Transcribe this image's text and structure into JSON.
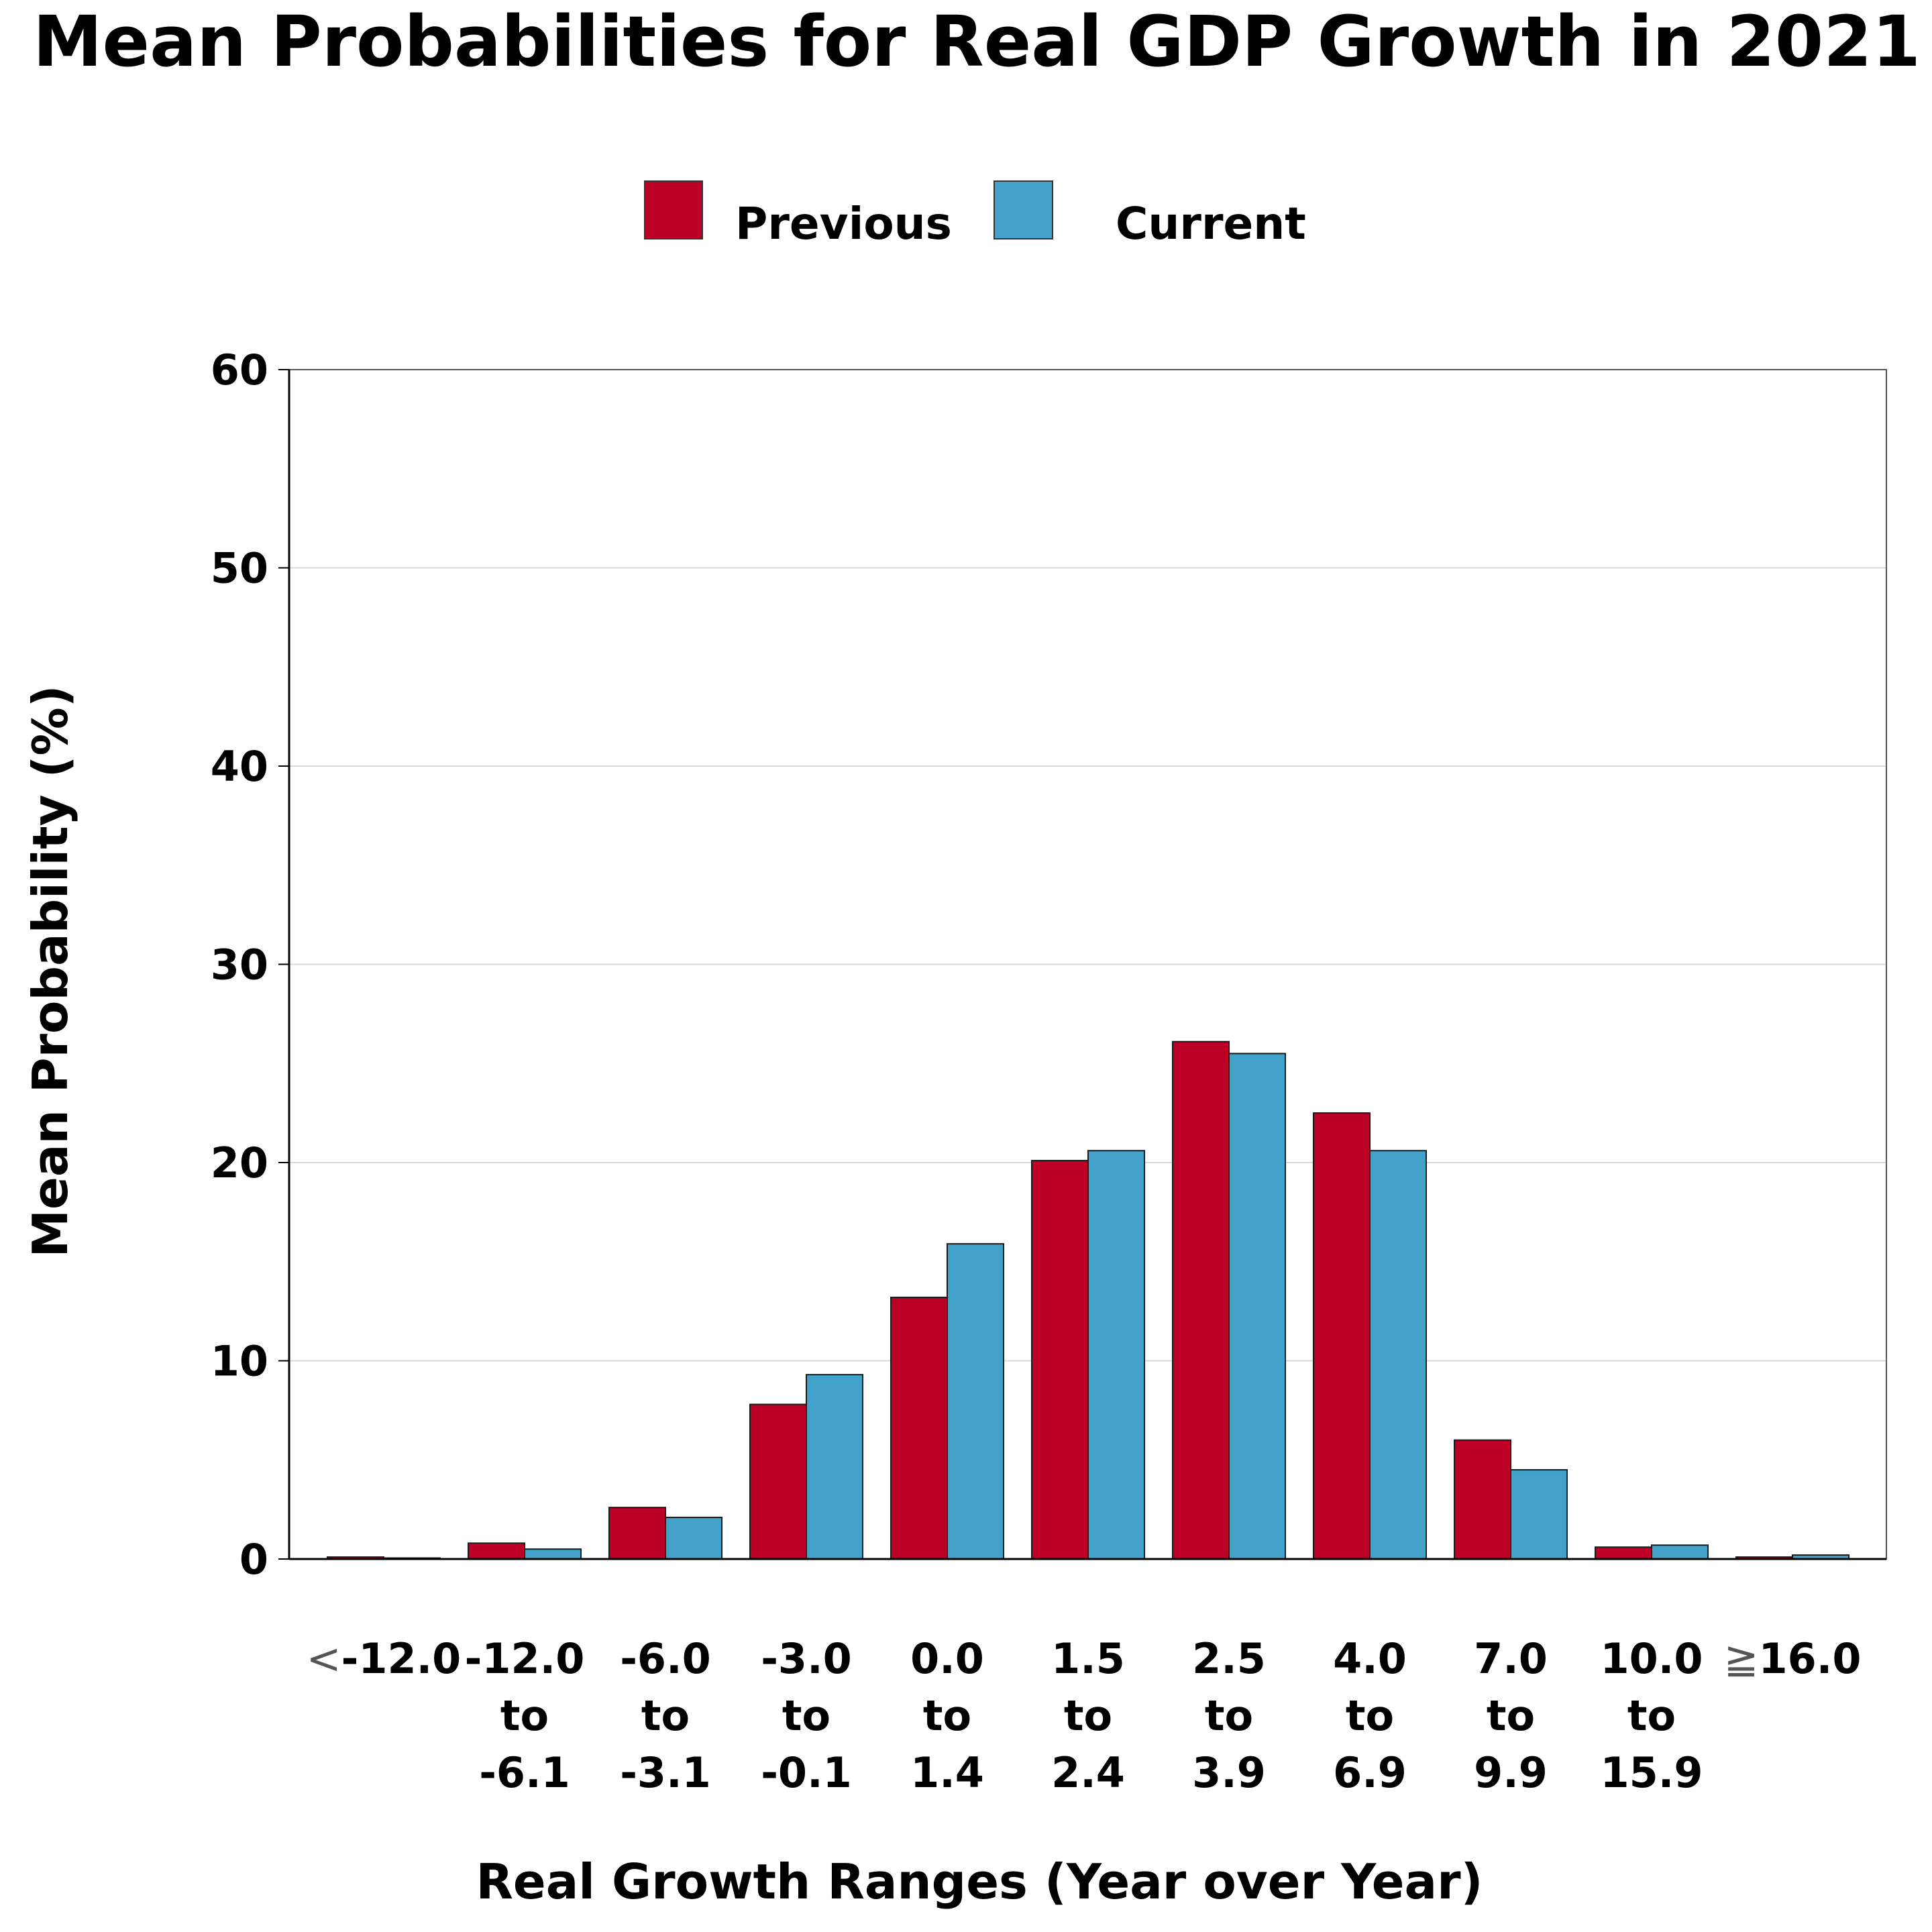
{
  "chart_data": {
    "type": "bar",
    "title": "Mean Probabilities for Real GDP Growth in 2021",
    "xlabel": "Real Growth Ranges (Year over Year)",
    "ylabel": "Mean Probability (%)",
    "ylim": [
      0,
      60
    ],
    "yticks": [
      0,
      10,
      20,
      30,
      40,
      50,
      60
    ],
    "grid": true,
    "legend_position": "top-center",
    "categories": [
      {
        "lines": [
          "-12.0"
        ],
        "prefix": "<"
      },
      {
        "lines": [
          "-12.0",
          "to",
          "-6.1"
        ]
      },
      {
        "lines": [
          "-6.0",
          "to",
          "-3.1"
        ]
      },
      {
        "lines": [
          "-3.0",
          "to",
          "-0.1"
        ]
      },
      {
        "lines": [
          "0.0",
          "to",
          "1.4"
        ]
      },
      {
        "lines": [
          "1.5",
          "to",
          "2.4"
        ]
      },
      {
        "lines": [
          "2.5",
          "to",
          "3.9"
        ]
      },
      {
        "lines": [
          "4.0",
          "to",
          "6.9"
        ]
      },
      {
        "lines": [
          "7.0",
          "to",
          "9.9"
        ]
      },
      {
        "lines": [
          "10.0",
          "to",
          "15.9"
        ]
      },
      {
        "lines": [
          "16.0"
        ],
        "prefix": "≧"
      }
    ],
    "category_names": [
      "< -12.0",
      "-12.0 to -6.1",
      "-6.0 to -3.1",
      "-3.0 to -0.1",
      "0.0 to 1.4",
      "1.5 to 2.4",
      "2.5 to 3.9",
      "4.0 to 6.9",
      "7.0 to 9.9",
      "10.0 to 15.9",
      "≥ 16.0"
    ],
    "series": [
      {
        "name": "Previous",
        "color": "#BD0026",
        "values": [
          0.1,
          0.8,
          2.6,
          7.8,
          13.2,
          20.1,
          26.1,
          22.5,
          6.0,
          0.6,
          0.1
        ]
      },
      {
        "name": "Current",
        "color": "#43A2CA",
        "values": [
          0.05,
          0.5,
          2.1,
          9.3,
          15.9,
          20.6,
          25.5,
          20.6,
          4.5,
          0.7,
          0.2
        ]
      }
    ]
  }
}
